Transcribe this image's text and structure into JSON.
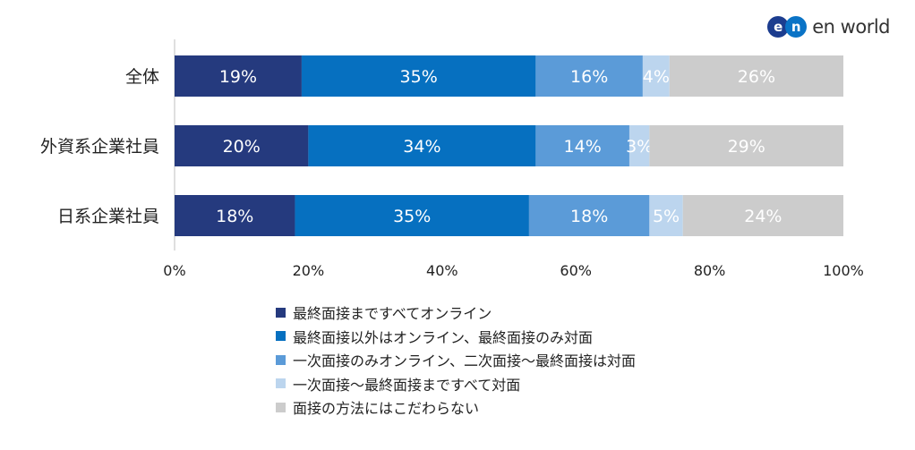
{
  "logo": {
    "mark": "en",
    "text": "en world"
  },
  "chart_data": {
    "type": "bar",
    "orientation": "horizontal",
    "stacked": true,
    "categories": [
      "全体",
      "外資系企業社員",
      "日系企業社員"
    ],
    "series": [
      {
        "name": "最終面接まですべてオンライン",
        "color": "#253a7e",
        "values": [
          19,
          20,
          18
        ],
        "labels": [
          "19%",
          "20%",
          "18%"
        ]
      },
      {
        "name": "最終面接以外はオンライン、最終面接のみ対面",
        "color": "#0670c0",
        "values": [
          35,
          34,
          35
        ],
        "labels": [
          "35%",
          "34%",
          "35%"
        ]
      },
      {
        "name": "一次面接のみオンライン、二次面接〜最終面接は対面",
        "color": "#5b9bd8",
        "values": [
          16,
          14,
          18
        ],
        "labels": [
          "16%",
          "14%",
          "18%"
        ]
      },
      {
        "name": "一次面接〜最終面接まですべて対面",
        "color": "#bcd5ee",
        "values": [
          4,
          3,
          5
        ],
        "labels": [
          "4%",
          "3%",
          "5%"
        ]
      },
      {
        "name": "面接の方法にはこだわらない",
        "color": "#cccccc",
        "values": [
          26,
          29,
          24
        ],
        "labels": [
          "26%",
          "29%",
          "24%"
        ]
      }
    ],
    "x_ticks": [
      "0%",
      "20%",
      "40%",
      "60%",
      "80%",
      "100%"
    ],
    "xlim": [
      0,
      100
    ],
    "grid": false,
    "legend_position": "bottom"
  }
}
